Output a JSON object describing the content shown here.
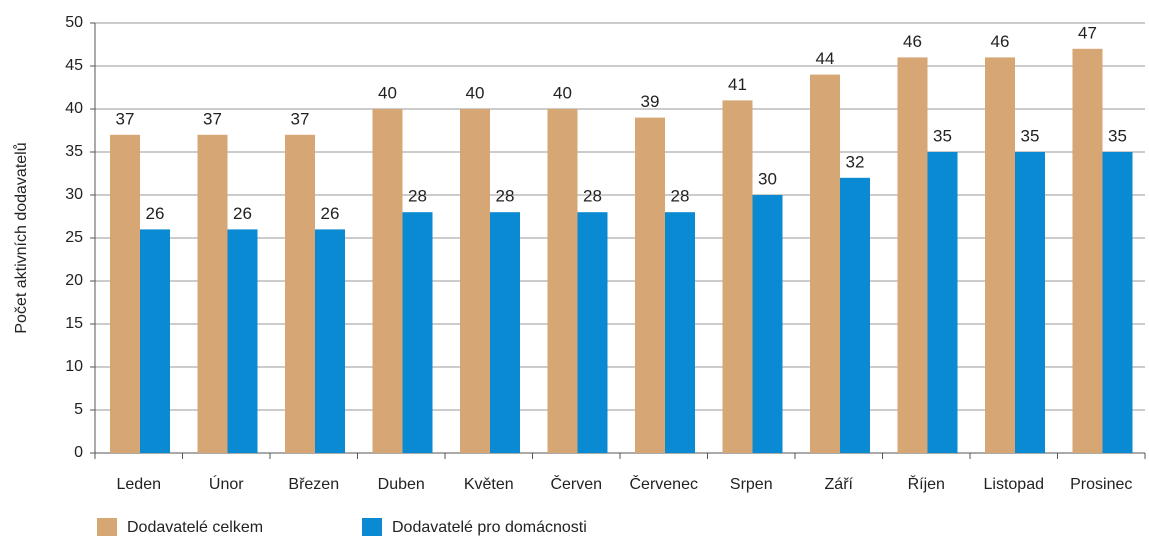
{
  "chart_data": {
    "type": "bar",
    "y_label": "Počet aktivních dodavatelů",
    "categories": [
      "Leden",
      "Únor",
      "Březen",
      "Duben",
      "Květen",
      "Červen",
      "Červenec",
      "Srpen",
      "Září",
      "Říjen",
      "Listopad",
      "Prosinec"
    ],
    "series": [
      {
        "name": "Dodavatelé celkem",
        "color": "#d6a675",
        "values": [
          37,
          37,
          37,
          40,
          40,
          40,
          39,
          41,
          44,
          46,
          46,
          47
        ]
      },
      {
        "name": "Dodavatelé pro domácnosti",
        "color": "#0a8ad2",
        "values": [
          26,
          26,
          26,
          28,
          28,
          28,
          28,
          30,
          32,
          35,
          35,
          35
        ]
      }
    ],
    "ylim": [
      0,
      50
    ],
    "yticks": [
      0,
      5,
      10,
      15,
      20,
      25,
      30,
      35,
      40,
      45,
      50
    ],
    "grid": true,
    "legend": "bottom-left"
  }
}
